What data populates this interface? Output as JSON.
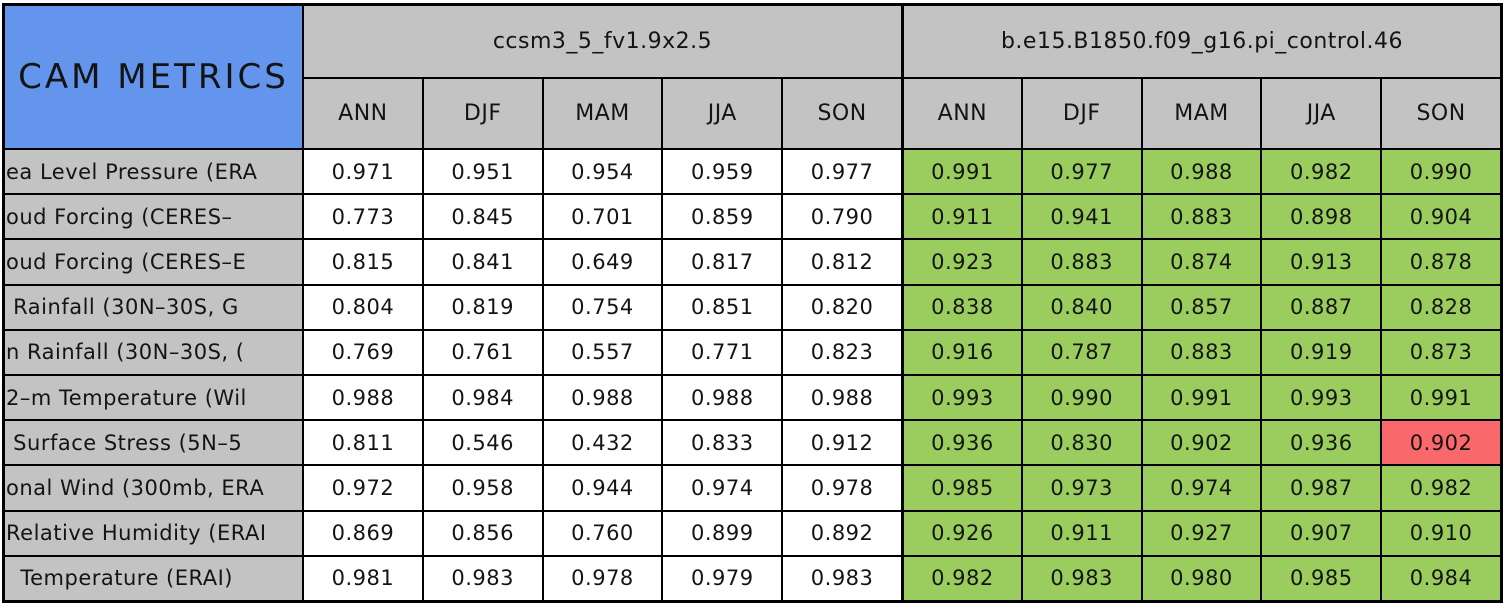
{
  "chart_data": {
    "type": "table",
    "title": "CAM METRICS",
    "groups": [
      {
        "name": "ccsm3_5_fv1.9x2.5",
        "seasons": [
          "ANN",
          "DJF",
          "MAM",
          "JJA",
          "SON"
        ]
      },
      {
        "name": "b.e15.B1850.f09_g16.pi_control.46",
        "seasons": [
          "ANN",
          "DJF",
          "MAM",
          "JJA",
          "SON"
        ]
      }
    ],
    "rows": [
      {
        "label": "ea Level Pressure (ERA",
        "model1": [
          "0.971",
          "0.951",
          "0.954",
          "0.959",
          "0.977"
        ],
        "model2": [
          "0.991",
          "0.977",
          "0.988",
          "0.982",
          "0.990"
        ]
      },
      {
        "label": "oud Forcing (CERES–",
        "model1": [
          "0.773",
          "0.845",
          "0.701",
          "0.859",
          "0.790"
        ],
        "model2": [
          "0.911",
          "0.941",
          "0.883",
          "0.898",
          "0.904"
        ]
      },
      {
        "label": "oud Forcing (CERES–E",
        "model1": [
          "0.815",
          "0.841",
          "0.649",
          "0.817",
          "0.812"
        ],
        "model2": [
          "0.923",
          "0.883",
          "0.874",
          "0.913",
          "0.878"
        ]
      },
      {
        "label": " Rainfall (30N–30S, G",
        "model1": [
          "0.804",
          "0.819",
          "0.754",
          "0.851",
          "0.820"
        ],
        "model2": [
          "0.838",
          "0.840",
          "0.857",
          "0.887",
          "0.828"
        ]
      },
      {
        "label": "n Rainfall (30N–30S, (",
        "model1": [
          "0.769",
          "0.761",
          "0.557",
          "0.771",
          "0.823"
        ],
        "model2": [
          "0.916",
          "0.787",
          "0.883",
          "0.919",
          "0.873"
        ]
      },
      {
        "label": "2–m Temperature (Wil",
        "model1": [
          "0.988",
          "0.984",
          "0.988",
          "0.988",
          "0.988"
        ],
        "model2": [
          "0.993",
          "0.990",
          "0.991",
          "0.993",
          "0.991"
        ]
      },
      {
        "label": " Surface Stress (5N–5",
        "model1": [
          "0.811",
          "0.546",
          "0.432",
          "0.833",
          "0.912"
        ],
        "model2": [
          "0.936",
          "0.830",
          "0.902",
          "0.936",
          "0.902"
        ]
      },
      {
        "label": "onal Wind (300mb, ERA",
        "model1": [
          "0.972",
          "0.958",
          "0.944",
          "0.974",
          "0.978"
        ],
        "model2": [
          "0.985",
          "0.973",
          "0.974",
          "0.987",
          "0.982"
        ]
      },
      {
        "label": "Relative Humidity (ERAI",
        "model1": [
          "0.869",
          "0.856",
          "0.760",
          "0.899",
          "0.892"
        ],
        "model2": [
          "0.926",
          "0.911",
          "0.927",
          "0.907",
          "0.910"
        ]
      },
      {
        "label": "  Temperature (ERAI)",
        "model1": [
          "0.981",
          "0.983",
          "0.978",
          "0.979",
          "0.983"
        ],
        "model2": [
          "0.982",
          "0.983",
          "0.980",
          "0.985",
          "0.984"
        ]
      }
    ],
    "alert_cell": {
      "row_index": 6,
      "group_index": 1,
      "col_index": 4
    },
    "layout_hints": {
      "grid": "on",
      "legend": "none"
    }
  },
  "colors": {
    "title_bg": "#6495ed",
    "header_bg": "#c3c3c3",
    "label_bg": "#c3c3c3",
    "model1_cell_bg": "#ffffff",
    "model2_cell_bg": "#9acd5e",
    "alert_cell_bg": "#f9696b",
    "border": "#000000",
    "text": "#141414"
  }
}
